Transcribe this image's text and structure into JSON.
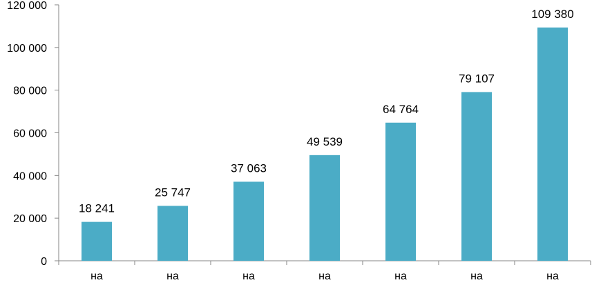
{
  "chart_data": {
    "type": "bar",
    "categories": [
      "на",
      "на",
      "на",
      "на",
      "на",
      "на",
      "на"
    ],
    "values": [
      18241,
      25747,
      37063,
      49539,
      64764,
      79107,
      109380
    ],
    "data_labels": [
      "18 241",
      "25 747",
      "37 063",
      "49 539",
      "64 764",
      "79 107",
      "109 380"
    ],
    "ylim": [
      0,
      120000
    ],
    "yticks": [
      0,
      20000,
      40000,
      60000,
      80000,
      100000,
      120000
    ],
    "ytick_labels": [
      "0",
      "20 000",
      "40 000",
      "60 000",
      "80 000",
      "100 000",
      "120 000"
    ],
    "grid": false,
    "legend": "none",
    "title": "",
    "xlabel": "",
    "ylabel": "",
    "bar_color": "#4bacc6",
    "axis_color": "#868686"
  }
}
